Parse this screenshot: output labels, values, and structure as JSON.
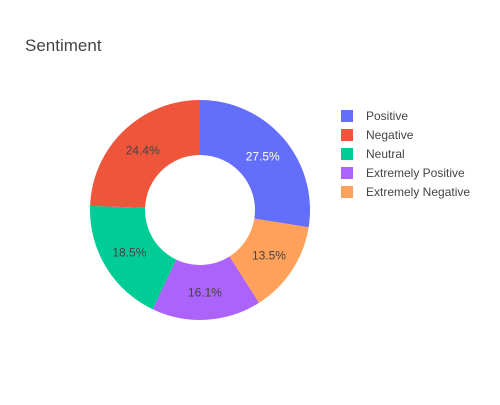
{
  "chart_data": {
    "type": "pie",
    "title": "Sentiment",
    "hole": 0.5,
    "labels": [
      "Positive",
      "Negative",
      "Neutral",
      "Extremely Positive",
      "Extremely Negative"
    ],
    "values": [
      27.5,
      24.4,
      18.5,
      16.1,
      13.5
    ],
    "value_labels": [
      "27.5%",
      "24.4%",
      "18.5%",
      "16.1%",
      "13.5%"
    ],
    "colors": [
      "#636efa",
      "#ef553b",
      "#00cc96",
      "#ab63fa",
      "#ffa15a"
    ],
    "slice_order": [
      0,
      4,
      3,
      2,
      1
    ],
    "direction": "clockwise",
    "legend_position": "right",
    "label_text_colors": [
      "#ffffff",
      "#444444",
      "#444444",
      "#444444",
      "#444444"
    ]
  }
}
